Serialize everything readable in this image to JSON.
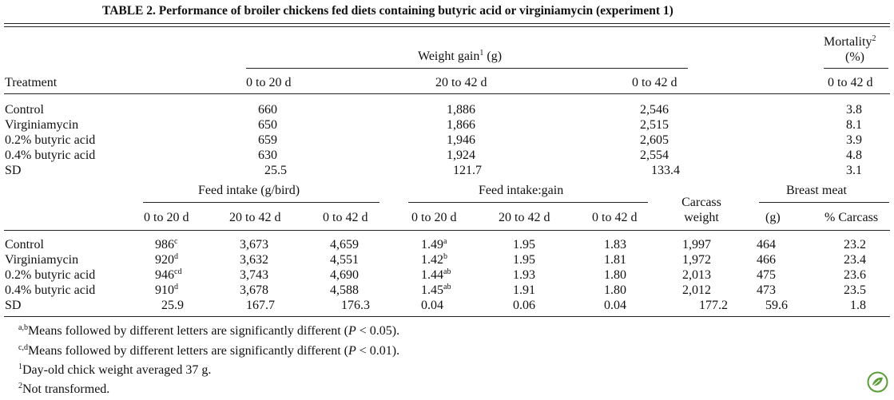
{
  "title": "TABLE 2. Performance of broiler chickens fed diets containing butyric acid or virginiamycin (experiment 1)",
  "section1": {
    "treatment_header": "Treatment",
    "weight_gain_header": "Weight gain",
    "weight_gain_sup": "1",
    "weight_gain_unit": " (g)",
    "mortality_header": "Mortality",
    "mortality_sup": "2",
    "mortality_unit": "(%)",
    "periods": [
      "0 to 20 d",
      "20 to 42 d",
      "0 to 42 d"
    ],
    "mortality_period": "0 to 42 d",
    "rows": [
      {
        "treatment": "Control",
        "w0_20": "660",
        "w20_42": "1,886",
        "w0_42": "2,546",
        "mortality": "3.8"
      },
      {
        "treatment": "Virginiamycin",
        "w0_20": "650",
        "w20_42": "1,866",
        "w0_42": "2,515",
        "mortality": "8.1"
      },
      {
        "treatment": "0.2% butyric acid",
        "w0_20": "659",
        "w20_42": "1,946",
        "w0_42": "2,605",
        "mortality": "3.9"
      },
      {
        "treatment": "0.4% butyric acid",
        "w0_20": "630",
        "w20_42": "1,924",
        "w0_42": "2,554",
        "mortality": "4.8"
      },
      {
        "treatment": "SD",
        "w0_20": "25.5",
        "w20_42": "121.7",
        "w0_42": "133.4",
        "mortality": "3.1"
      }
    ]
  },
  "section2": {
    "feed_intake_header": "Feed intake (g/bird)",
    "feed_gain_header": "Feed intake:gain",
    "carcass_header_1": "Carcass",
    "carcass_header_2": "weight",
    "breast_header": "Breast meat",
    "periods": [
      "0 to 20 d",
      "20 to 42 d",
      "0 to 42 d"
    ],
    "breast_sub": [
      "(g)",
      "% Carcass"
    ],
    "rows": [
      {
        "treatment": "Control",
        "fi0_20": "986",
        "fi0_20_sup": "c",
        "fi20_42": "3,673",
        "fi0_42": "4,659",
        "fg0_20": "1.49",
        "fg0_20_sup": "a",
        "fg20_42": "1.95",
        "fg0_42": "1.83",
        "carcass": "1,997",
        "breast_g": "464",
        "breast_pct": "23.2"
      },
      {
        "treatment": "Virginiamycin",
        "fi0_20": "920",
        "fi0_20_sup": "d",
        "fi20_42": "3,632",
        "fi0_42": "4,551",
        "fg0_20": "1.42",
        "fg0_20_sup": "b",
        "fg20_42": "1.95",
        "fg0_42": "1.81",
        "carcass": "1,972",
        "breast_g": "466",
        "breast_pct": "23.4"
      },
      {
        "treatment": "0.2% butyric acid",
        "fi0_20": "946",
        "fi0_20_sup": "cd",
        "fi20_42": "3,743",
        "fi0_42": "4,690",
        "fg0_20": "1.44",
        "fg0_20_sup": "ab",
        "fg20_42": "1.93",
        "fg0_42": "1.80",
        "carcass": "2,013",
        "breast_g": "475",
        "breast_pct": "23.6"
      },
      {
        "treatment": "0.4% butyric acid",
        "fi0_20": "910",
        "fi0_20_sup": "d",
        "fi20_42": "3,678",
        "fi0_42": "4,588",
        "fg0_20": "1.45",
        "fg0_20_sup": "ab",
        "fg20_42": "1.91",
        "fg0_42": "1.80",
        "carcass": "2,012",
        "breast_g": "473",
        "breast_pct": "23.5"
      },
      {
        "treatment": "SD",
        "fi0_20": "25.9",
        "fi0_20_sup": "",
        "fi20_42": "167.7",
        "fi0_42": "176.3",
        "fg0_20": "0.04",
        "fg0_20_sup": "",
        "fg20_42": "0.06",
        "fg0_42": "0.04",
        "carcass": "177.2",
        "breast_g": "59.6",
        "breast_pct": "1.8"
      }
    ]
  },
  "footnotes": [
    {
      "sup": "a,b",
      "text": "Means followed by different letters are significantly different (",
      "p": "P",
      "tail": " < 0.05)."
    },
    {
      "sup": "c,d",
      "text": "Means followed by different letters are significantly different (",
      "p": "P",
      "tail": " < 0.01)."
    },
    {
      "sup": "1",
      "text": "Day-old chick weight averaged 37 g.",
      "p": "",
      "tail": ""
    },
    {
      "sup": "2",
      "text": "Not transformed.",
      "p": "",
      "tail": ""
    }
  ],
  "icons": {
    "logo": "leaf-logo-icon",
    "logo_color": "#5a9e3a"
  }
}
